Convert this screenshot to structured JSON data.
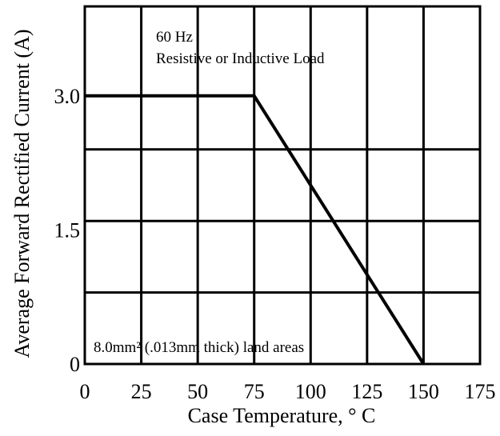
{
  "chart_data": {
    "type": "line",
    "title": "",
    "xlabel": "Case  Temperature, ° C",
    "ylabel": "Average Forward Rectified Current (A)",
    "xlim": [
      0,
      175
    ],
    "ylim": [
      0,
      4
    ],
    "xticks": [
      0,
      25,
      50,
      75,
      100,
      125,
      150,
      175
    ],
    "xtick_labels": [
      "0",
      "25",
      "50",
      "75",
      "100",
      "125",
      "150",
      "175"
    ],
    "yticks": [
      0,
      1.5,
      3.0
    ],
    "ytick_labels": [
      "0",
      "1.5",
      "3.0"
    ],
    "grid": true,
    "annotations": [
      "60 Hz",
      "Resistive or Inductive Load",
      "8.0mm² (.013mm thick) land areas"
    ],
    "series": [
      {
        "x": [
          0,
          75,
          150
        ],
        "y": [
          3.0,
          3.0,
          0
        ]
      }
    ]
  }
}
